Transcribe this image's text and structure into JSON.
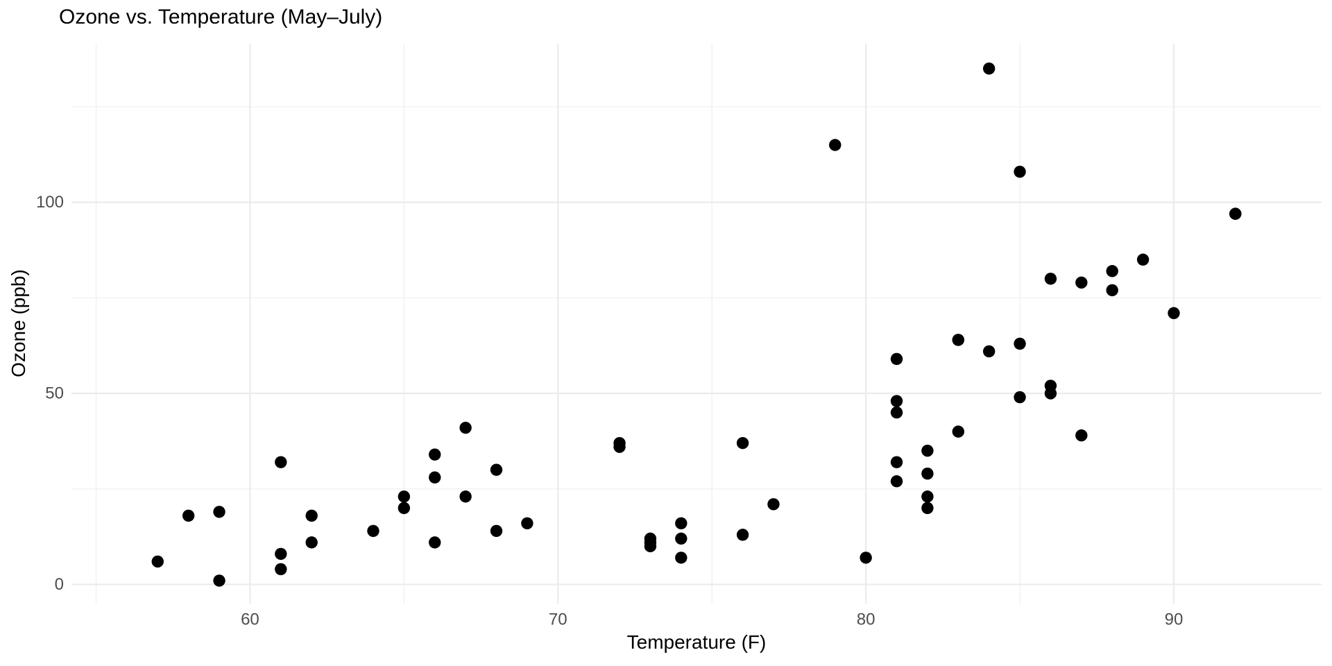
{
  "chart_data": {
    "type": "scatter",
    "title": "Ozone vs. Temperature (May–July)",
    "xlabel": "Temperature (F)",
    "ylabel": "Ozone (ppb)",
    "x_ticks": [
      60,
      70,
      80,
      90
    ],
    "x_minor_ticks": [
      55,
      65,
      75,
      85
    ],
    "y_ticks": [
      0,
      50,
      100
    ],
    "y_minor_ticks": [
      25,
      75,
      125
    ],
    "xlim": [
      54.2,
      94.8
    ],
    "ylim": [
      -5,
      141.5
    ],
    "grid": true,
    "legend": "none",
    "colors": {
      "point": "#000000",
      "grid_major": "#EBEBEB",
      "grid_minor": "#F0F0F0",
      "axis_text": "#4D4D4D",
      "title_text": "#000000",
      "background": "#FFFFFF"
    },
    "points": [
      {
        "temp": 67,
        "ozone": 41
      },
      {
        "temp": 72,
        "ozone": 36
      },
      {
        "temp": 74,
        "ozone": 12
      },
      {
        "temp": 62,
        "ozone": 18
      },
      {
        "temp": 66,
        "ozone": 28
      },
      {
        "temp": 65,
        "ozone": 23
      },
      {
        "temp": 59,
        "ozone": 19
      },
      {
        "temp": 61,
        "ozone": 8
      },
      {
        "temp": 74,
        "ozone": 7
      },
      {
        "temp": 69,
        "ozone": 16
      },
      {
        "temp": 66,
        "ozone": 11
      },
      {
        "temp": 68,
        "ozone": 14
      },
      {
        "temp": 58,
        "ozone": 18
      },
      {
        "temp": 64,
        "ozone": 14
      },
      {
        "temp": 66,
        "ozone": 34
      },
      {
        "temp": 57,
        "ozone": 6
      },
      {
        "temp": 68,
        "ozone": 30
      },
      {
        "temp": 62,
        "ozone": 11
      },
      {
        "temp": 59,
        "ozone": 1
      },
      {
        "temp": 73,
        "ozone": 11
      },
      {
        "temp": 61,
        "ozone": 4
      },
      {
        "temp": 61,
        "ozone": 32
      },
      {
        "temp": 67,
        "ozone": 23
      },
      {
        "temp": 81,
        "ozone": 45
      },
      {
        "temp": 79,
        "ozone": 115
      },
      {
        "temp": 76,
        "ozone": 37
      },
      {
        "temp": 82,
        "ozone": 29
      },
      {
        "temp": 90,
        "ozone": 71
      },
      {
        "temp": 87,
        "ozone": 39
      },
      {
        "temp": 82,
        "ozone": 23
      },
      {
        "temp": 77,
        "ozone": 21
      },
      {
        "temp": 72,
        "ozone": 37
      },
      {
        "temp": 65,
        "ozone": 20
      },
      {
        "temp": 73,
        "ozone": 12
      },
      {
        "temp": 76,
        "ozone": 13
      },
      {
        "temp": 84,
        "ozone": 135
      },
      {
        "temp": 85,
        "ozone": 49
      },
      {
        "temp": 81,
        "ozone": 32
      },
      {
        "temp": 83,
        "ozone": 64
      },
      {
        "temp": 83,
        "ozone": 40
      },
      {
        "temp": 88,
        "ozone": 77
      },
      {
        "temp": 92,
        "ozone": 97
      },
      {
        "temp": 92,
        "ozone": 97
      },
      {
        "temp": 89,
        "ozone": 85
      },
      {
        "temp": 73,
        "ozone": 10
      },
      {
        "temp": 81,
        "ozone": 27
      },
      {
        "temp": 80,
        "ozone": 7
      },
      {
        "temp": 81,
        "ozone": 48
      },
      {
        "temp": 82,
        "ozone": 35
      },
      {
        "temp": 84,
        "ozone": 61
      },
      {
        "temp": 87,
        "ozone": 79
      },
      {
        "temp": 85,
        "ozone": 63
      },
      {
        "temp": 74,
        "ozone": 16
      },
      {
        "temp": 86,
        "ozone": 80
      },
      {
        "temp": 85,
        "ozone": 108
      },
      {
        "temp": 82,
        "ozone": 20
      },
      {
        "temp": 86,
        "ozone": 52
      },
      {
        "temp": 88,
        "ozone": 82
      },
      {
        "temp": 86,
        "ozone": 50
      },
      {
        "temp": 83,
        "ozone": 64
      },
      {
        "temp": 81,
        "ozone": 59
      }
    ]
  }
}
